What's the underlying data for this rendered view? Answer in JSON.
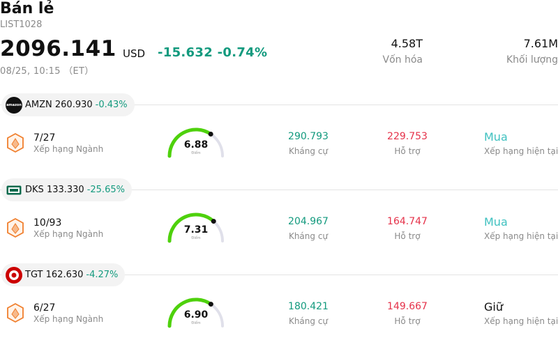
{
  "header": {
    "title": "Bán lẻ",
    "code": "LIST1028",
    "price": "2096.141",
    "currency": "USD",
    "change": "-15.632 -0.74%",
    "time": "08/25, 10:15 （ET）"
  },
  "stats": {
    "market_cap_value": "4.58T",
    "market_cap_label": "Vốn hóa",
    "volume_value": "7.61M",
    "volume_label": "Khối lượng"
  },
  "colors": {
    "up_green": "#139a7e",
    "down_red": "#e5324a",
    "buy_teal": "#3fc1c0",
    "gauge_green": "#4ed10c",
    "gauge_track": "#e0e0ea",
    "hex_orange": "#f07f2e"
  },
  "labels": {
    "rank": "Xếp hạng Ngành",
    "score": "Điểm",
    "resistance": "Kháng cự",
    "support": "Hỗ trợ",
    "rating": "Xếp hạng hiện tại"
  },
  "stocks": [
    {
      "ticker": "AMZN",
      "price": "260.930",
      "change": "-0.43%",
      "logo_icon": "amazon-logo-icon",
      "logo_text": "amazon",
      "rank": "7/27",
      "score": "6.88",
      "score_value": 6.88,
      "resistance": "290.793",
      "support": "229.753",
      "rating": "Mua"
    },
    {
      "ticker": "DKS",
      "price": "133.330",
      "change": "-25.65%",
      "logo_icon": "dicks-logo-icon",
      "logo_text": "DICK'S",
      "rank": "10/93",
      "score": "7.31",
      "score_value": 7.31,
      "resistance": "204.967",
      "support": "164.747",
      "rating": "Mua"
    },
    {
      "ticker": "TGT",
      "price": "162.630",
      "change": "-4.27%",
      "logo_icon": "target-logo-icon",
      "rank": "6/27",
      "score": "6.90",
      "score_value": 6.9,
      "resistance": "180.421",
      "support": "149.667",
      "rating": "Giữ"
    }
  ]
}
